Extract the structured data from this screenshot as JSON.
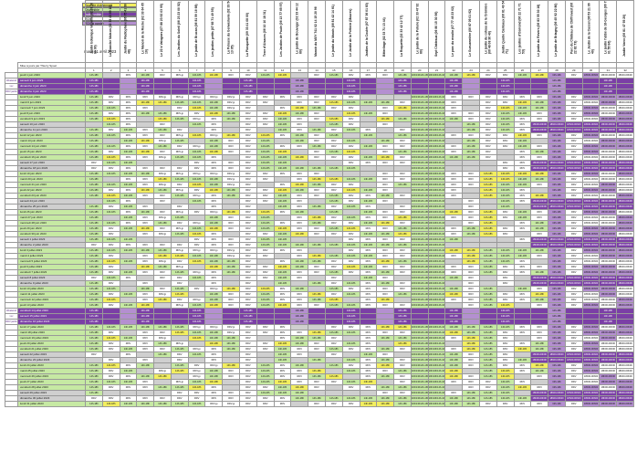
{
  "legend": [
    {
      "label": "Journée événement",
      "color": "#f2ee60"
    },
    {
      "label": "Disponible",
      "color": "#c6e9a3"
    },
    {
      "label": "Indisponible",
      "color": "#7b3fa6"
    },
    {
      "label": "RDV",
      "color": "#ffffff"
    },
    {
      "label": "RDV à garder",
      "color": "#b48fd0"
    }
  ],
  "update_date": "mardi 11 avril 2023",
  "control_label": "Mise à jours par Thierry Spoel",
  "columns": [
    "Jardin botanique Vauville (02 33 10 00 00)",
    "La Blanche Maison (02 33 43 69 10)",
    "Jardin du Radiophare (06 75 41 30 48)",
    "Le Manoir de la Roche (02 33 64 65 10)",
    "Le 22 à Valognes (07 88 23 92 03 95)",
    "Les Jardins du Soleil (06 23 23 00 52)",
    "Le jardin de Brucan (06 81 59 16 68)",
    "Les jardins petits (07 85 71 49 55)",
    "La Pelouse du Genvaslavie (02 33 54 13 05)",
    "La Plasquette (09 33 41 08 00)",
    "Terre d'Alsaces (06 10 10 18 31)",
    "Les Jardins de Paule (06 13 77 65 97)",
    "Le jardin de Bouveger (02 33 44 12 80)",
    "Manoir du MXY 741 02 14 15 20 96",
    "Le jardin du Marais (06 81 42 14 61)",
    "Le Jardin de la Préterie (Maures)",
    "Jardins de la Coulée (07 87 36 01 83)",
    "Bitterlinge (02 33 71 13 44)",
    "La Roquette (02 33 42 12 77)",
    "Le jardin de la Poterie (02 33 47 92 80)",
    "Sept Châteaux (06 80 15 30 56)",
    "Le parc du moulin (07 77 46 23 02)",
    "Le Gueuzemière (06 87 05 01 62)",
    "Le jardin du coteau de la Crémière (06 48 08 36 40)",
    "Jardin Quatre Canteaux (06 81 49 54 71)",
    "Les jardins d'Osmond (06 22 71 71 53)",
    "Le jardin du Revers (06 83 55 30 18)",
    "Le jardin de Briagny (06 45 92 22 80)",
    "Parc du Château de Chiffrevast (06 22 82 73)",
    "Le Jardin de la Cassel (06 53 21 96 40)",
    "Le jardin l'abbé de St-Georges (06 73 01 55 96)",
    "Jardin Varoc (06 81 47 55 20)"
  ],
  "side_notes": {
    "weekend": "Weekend",
    "vvv": "vvv",
    "rdv": "RDV jardin"
  },
  "dates": [
    {
      "label": "jeudi 1 juin 2023",
      "k": "w"
    },
    {
      "label": "samedi 3 juin 2023",
      "k": "pe",
      "note": "weekend"
    },
    {
      "label": "dimanche 4 juin 2023",
      "k": "pe",
      "note": "vvv"
    },
    {
      "label": "dimanche 4 juin 2023",
      "k": "pe",
      "note": "rdv"
    },
    {
      "label": "lundi 5 juin 2023",
      "k": "w"
    },
    {
      "label": "mardi 6 juin 2023",
      "k": "w"
    },
    {
      "label": "mercredi 7 juin 2023",
      "k": "w"
    },
    {
      "label": "jeudi 8 juin 2023",
      "k": "w"
    },
    {
      "label": "vendredi 9 juin 2023",
      "k": "w"
    },
    {
      "label": "samedi 10 juin 2023",
      "k": "we"
    },
    {
      "label": "dimanche 11 juin 2023",
      "k": "we"
    },
    {
      "label": "lundi 12 juin 2023",
      "k": "w"
    },
    {
      "label": "mardi 13 juin 2023",
      "k": "w"
    },
    {
      "label": "mercredi 14 juin 2023",
      "k": "w"
    },
    {
      "label": "jeudi 15 juin 2023",
      "k": "w"
    },
    {
      "label": "vendredi 16 juin 2023",
      "k": "w"
    },
    {
      "label": "samedi 17 juin 2023",
      "k": "we"
    },
    {
      "label": "dimanche 18 juin 2023",
      "k": "we"
    },
    {
      "label": "lundi 19 juin 2023",
      "k": "w"
    },
    {
      "label": "mardi 20 juin 2023",
      "k": "w"
    },
    {
      "label": "mercredi 21 juin 2023",
      "k": "w"
    },
    {
      "label": "jeudi 22 juin 2023",
      "k": "w"
    },
    {
      "label": "vendredi 23 juin 2023",
      "k": "w"
    },
    {
      "label": "samedi 24 juin 2023",
      "k": "we"
    },
    {
      "label": "dimanche 25 juin 2023",
      "k": "we"
    },
    {
      "label": "lundi 26 juin 2023",
      "k": "w"
    },
    {
      "label": "mardi 27 juin 2023",
      "k": "w"
    },
    {
      "label": "mercredi 28 juin 2023",
      "k": "w"
    },
    {
      "label": "jeudi 29 juin 2023",
      "k": "w"
    },
    {
      "label": "vendredi 30 juin 2023",
      "k": "w"
    },
    {
      "label": "samedi 1 juillet 2023",
      "k": "we"
    },
    {
      "label": "dimanche 2 juillet 2023",
      "k": "we"
    },
    {
      "label": "lundi 3 juillet 2023",
      "k": "w"
    },
    {
      "label": "mardi 4 juillet 2023",
      "k": "w"
    },
    {
      "label": "mercredi 5 juillet 2023",
      "k": "w"
    },
    {
      "label": "jeudi 6 juillet 2023",
      "k": "w"
    },
    {
      "label": "vendredi 7 juillet 2023",
      "k": "w"
    },
    {
      "label": "samedi 8 juillet 2023",
      "k": "we"
    },
    {
      "label": "dimanche 9 juillet 2023",
      "k": "we"
    },
    {
      "label": "lundi 10 juillet 2023",
      "k": "w"
    },
    {
      "label": "mardi 11 juillet 2023",
      "k": "w"
    },
    {
      "label": "mercredi 12 juillet 2023",
      "k": "w"
    },
    {
      "label": "jeudi 13 juillet 2023",
      "k": "w"
    },
    {
      "label": "vendredi 14 juillet 2023",
      "k": "pe",
      "note": "weekend"
    },
    {
      "label": "samedi 15 juillet 2023",
      "k": "pe",
      "note": "vvv"
    },
    {
      "label": "dimanche 16 juillet 2023",
      "k": "pe",
      "note": "rdv"
    },
    {
      "label": "lundi 17 juillet 2023",
      "k": "w"
    },
    {
      "label": "mardi 18 juillet 2023",
      "k": "w"
    },
    {
      "label": "mercredi 19 juillet 2023",
      "k": "w"
    },
    {
      "label": "jeudi 20 juillet 2023",
      "k": "w"
    },
    {
      "label": "vendredi 21 juillet 2023",
      "k": "w"
    },
    {
      "label": "samedi 22 juillet 2023",
      "k": "we"
    },
    {
      "label": "dimanche 23 juillet 2023",
      "k": "we"
    },
    {
      "label": "lundi 24 juillet 2023",
      "k": "w"
    },
    {
      "label": "mardi 25 juillet 2023",
      "k": "w"
    },
    {
      "label": "mercredi 26 juillet 2023",
      "k": "w"
    },
    {
      "label": "jeudi 27 juillet 2023",
      "k": "w"
    },
    {
      "label": "vendredi 28 juillet 2023",
      "k": "w"
    },
    {
      "label": "samedi 29 juillet 2023",
      "k": "we"
    },
    {
      "label": "dimanche 30 juillet 2023",
      "k": "we"
    },
    {
      "label": "lundi 31 juillet 2023",
      "k": "w"
    }
  ],
  "cell_text": {
    "avail": "14h-18h",
    "rdv": "RDV",
    "rdvp": "RDV-jp",
    "long": "10h/13h14h-16h",
    "half": "13h-19h",
    "none": "",
    "eve": "14h-17h30",
    "hours": "18h00-00h00"
  }
}
